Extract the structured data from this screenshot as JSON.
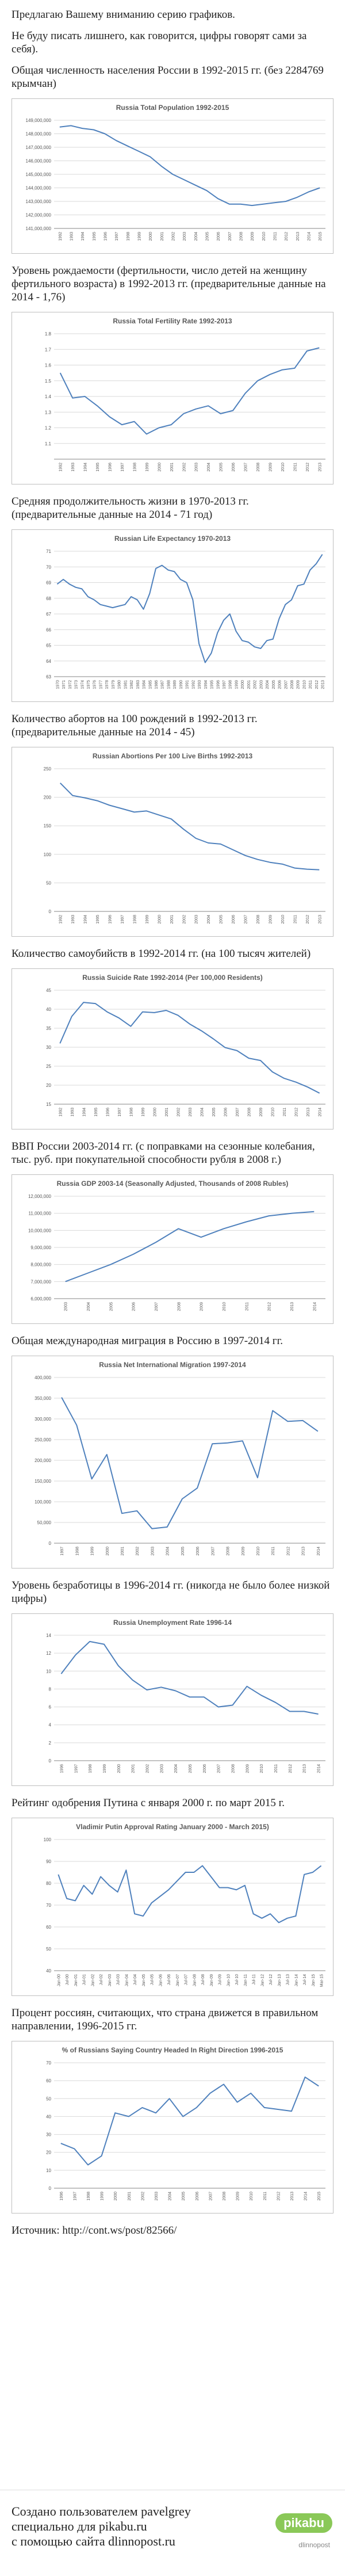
{
  "intro": [
    "Предлагаю Вашему вниманию серию графиков.",
    "Не буду писать лишнего, как говорится, цифры говорят сами за себя)."
  ],
  "sections": [
    {
      "caption": "Общая численность населения России в 1992-2015 гг. (без 2284769 крымчан)"
    },
    {
      "caption": "Уровень рождаемости (фертильности, число детей на женщину фертильного возраста) в 1992-2013 гг. (предварительные данные на 2014 - 1,76)"
    },
    {
      "caption": "Средняя продолжительность жизни в 1970-2013 гг. (предварительные данные на 2014 - 71 год)"
    },
    {
      "caption": "Количество абортов на 100 рождений в 1992-2013 гг. (предварительные данные на 2014 - 45)"
    },
    {
      "caption": "Количество самоубийств в 1992-2014 гг. (на 100 тысяч жителей)"
    },
    {
      "caption": "ВВП России 2003-2014 гг. (с поправками на сезонные колебания, тыс. руб. при покупательной способности рубля в 2008 г.)"
    },
    {
      "caption": "Общая международная миграция в Россию в 1997-2014 гг."
    },
    {
      "caption": "Уровень безработицы в 1996-2014 гг. (никогда не было более низкой цифры)"
    },
    {
      "caption": "Рейтинг одобрения Путина с января 2000 г. по март 2015 г."
    },
    {
      "caption": "Процент россиян, считающих, что страна движется в правильном направлении, 1996-2015 гг."
    }
  ],
  "chart_data": [
    {
      "type": "line",
      "title": "Russia Total Population 1992-2015",
      "color": "#4f81bd",
      "categories": [
        "1992",
        "1993",
        "1994",
        "1995",
        "1996",
        "1997",
        "1998",
        "1999",
        "2000",
        "2001",
        "2002",
        "2003",
        "2004",
        "2005",
        "2006",
        "2007",
        "2008",
        "2009",
        "2010",
        "2011",
        "2012",
        "2013",
        "2014",
        "2015"
      ],
      "values": [
        148500000,
        148600000,
        148400000,
        148300000,
        148000000,
        147500000,
        147100000,
        146700000,
        146300000,
        145600000,
        145000000,
        144600000,
        144200000,
        143800000,
        143200000,
        142800000,
        142800000,
        142700000,
        142800000,
        142900000,
        143000000,
        143300000,
        143700000,
        144000000
      ],
      "ylim": [
        141000000,
        149000000
      ],
      "yticks": [
        {
          "value": 141000000,
          "label": "141,000,000"
        },
        {
          "value": 142000000,
          "label": "142,000,000"
        },
        {
          "value": 143000000,
          "label": "143,000,000"
        },
        {
          "value": 144000000,
          "label": "144,000,000"
        },
        {
          "value": 145000000,
          "label": "145,000,000"
        },
        {
          "value": 146000000,
          "label": "146,000,000"
        },
        {
          "value": 147000000,
          "label": "147,000,000"
        },
        {
          "value": 148000000,
          "label": "148,000,000"
        },
        {
          "value": 149000000,
          "label": "149,000,000"
        }
      ],
      "grid": true
    },
    {
      "type": "line",
      "title": "Russia Total Fertility Rate 1992-2013",
      "color": "#4f81bd",
      "categories": [
        "1992",
        "1993",
        "1994",
        "1995",
        "1996",
        "1997",
        "1998",
        "1999",
        "2000",
        "2001",
        "2002",
        "2003",
        "2004",
        "2005",
        "2006",
        "2007",
        "2008",
        "2009",
        "2010",
        "2011",
        "2012",
        "2013"
      ],
      "values": [
        1.55,
        1.39,
        1.4,
        1.34,
        1.27,
        1.22,
        1.24,
        1.16,
        1.2,
        1.22,
        1.29,
        1.32,
        1.34,
        1.29,
        1.31,
        1.42,
        1.5,
        1.54,
        1.57,
        1.58,
        1.69,
        1.71
      ],
      "ylim": [
        1,
        1.8
      ],
      "yticks": [
        1.1,
        1.2,
        1.3,
        1.4,
        1.5,
        1.6,
        1.7,
        1.8
      ],
      "grid": true
    },
    {
      "type": "line",
      "title": "Russian Life Expectancy 1970-2013",
      "color": "#4f81bd",
      "categories": [
        "1970",
        "1971",
        "1972",
        "1973",
        "1974",
        "1975",
        "1976",
        "1977",
        "1978",
        "1979",
        "1980",
        "1981",
        "1982",
        "1983",
        "1984",
        "1985",
        "1986",
        "1987",
        "1988",
        "1989",
        "1990",
        "1991",
        "1992",
        "1993",
        "1994",
        "1995",
        "1996",
        "1997",
        "1998",
        "1999",
        "2000",
        "2001",
        "2002",
        "2003",
        "2004",
        "2005",
        "2006",
        "2007",
        "2008",
        "2009",
        "2010",
        "2011",
        "2012",
        "2013"
      ],
      "values": [
        68.9,
        69.2,
        68.9,
        68.7,
        68.6,
        68.1,
        67.9,
        67.6,
        67.5,
        67.4,
        67.5,
        67.6,
        68.1,
        67.9,
        67.3,
        68.3,
        69.9,
        70.1,
        69.8,
        69.7,
        69.2,
        69,
        67.9,
        65.1,
        63.9,
        64.5,
        65.8,
        66.6,
        67,
        65.9,
        65.3,
        65.2,
        64.9,
        64.8,
        65.3,
        65.4,
        66.7,
        67.6,
        67.9,
        68.8,
        68.9,
        69.8,
        70.2,
        70.8
      ],
      "ylim": [
        63,
        71
      ],
      "yticks": [
        63,
        64,
        65,
        66,
        67,
        68,
        69,
        70,
        71
      ],
      "grid": true
    },
    {
      "type": "line",
      "title": "Russian Abortions Per 100 Live Births 1992-2013",
      "color": "#4f81bd",
      "categories": [
        "1992",
        "1993",
        "1994",
        "1995",
        "1996",
        "1997",
        "1998",
        "1999",
        "2000",
        "2001",
        "2002",
        "2003",
        "2004",
        "2005",
        "2006",
        "2007",
        "2008",
        "2009",
        "2010",
        "2011",
        "2012",
        "2013"
      ],
      "values": [
        225,
        203,
        199,
        194,
        186,
        180,
        174,
        176,
        169,
        162,
        144,
        128,
        120,
        118,
        108,
        98,
        91,
        86,
        83,
        76,
        74,
        73
      ],
      "ylim": [
        0,
        250
      ],
      "yticks": [
        0,
        50,
        100,
        150,
        200,
        250
      ],
      "grid": true
    },
    {
      "type": "line",
      "title": "Russia Suicide Rate 1992-2014 (Per 100,000 Residents)",
      "color": "#4f81bd",
      "categories": [
        "1992",
        "1993",
        "1994",
        "1995",
        "1996",
        "1997",
        "1998",
        "1999",
        "2000",
        "2001",
        "2002",
        "2003",
        "2004",
        "2005",
        "2006",
        "2007",
        "2008",
        "2009",
        "2010",
        "2011",
        "2012",
        "2013",
        "2014"
      ],
      "values": [
        31,
        38.1,
        41.8,
        41.5,
        39.3,
        37.7,
        35.5,
        39.3,
        39.1,
        39.7,
        38.4,
        36.1,
        34.3,
        32.2,
        29.9,
        29.1,
        27.1,
        26.5,
        23.5,
        21.8,
        20.8,
        19.5,
        17.9
      ],
      "ylim": [
        15,
        45
      ],
      "yticks": [
        15,
        20,
        25,
        30,
        35,
        40,
        45
      ],
      "grid": true
    },
    {
      "type": "line",
      "title": "Russia GDP 2003-14 (Seasonally Adjusted, Thousands of 2008 Rubles)",
      "color": "#4f81bd",
      "categories": [
        "2003",
        "2004",
        "2005",
        "2006",
        "2007",
        "2008",
        "2009",
        "2010",
        "2011",
        "2012",
        "2013",
        "2014"
      ],
      "values": [
        7000000,
        7500000,
        8000000,
        8600000,
        9300000,
        10100000,
        9600000,
        10100000,
        10500000,
        10850000,
        11000000,
        11100000
      ],
      "ylim": [
        6000000,
        12000000
      ],
      "yticks": [
        {
          "value": 6000000,
          "label": "6,000,000"
        },
        {
          "value": 7000000,
          "label": "7,000,000"
        },
        {
          "value": 8000000,
          "label": "8,000,000"
        },
        {
          "value": 9000000,
          "label": "9,000,000"
        },
        {
          "value": 10000000,
          "label": "10,000,000"
        },
        {
          "value": 11000000,
          "label": "11,000,000"
        },
        {
          "value": 12000000,
          "label": "12,000,000"
        }
      ],
      "grid": true
    },
    {
      "type": "line",
      "title": "Russia Net International Migration 1997-2014",
      "color": "#4f81bd",
      "categories": [
        "1997",
        "1998",
        "1999",
        "2000",
        "2001",
        "2002",
        "2003",
        "2004",
        "2005",
        "2006",
        "2007",
        "2008",
        "2009",
        "2010",
        "2011",
        "2012",
        "2013",
        "2014"
      ],
      "values": [
        352000,
        285000,
        155000,
        214000,
        72000,
        78000,
        35000,
        39000,
        107000,
        133000,
        240000,
        242000,
        247000,
        158000,
        320000,
        294000,
        296000,
        270000
      ],
      "ylim": [
        0,
        400000
      ],
      "yticks": [
        0,
        {
          "value": 50000,
          "label": "50,000"
        },
        {
          "value": 100000,
          "label": "100,000"
        },
        {
          "value": 150000,
          "label": "150,000"
        },
        {
          "value": 200000,
          "label": "200,000"
        },
        {
          "value": 250000,
          "label": "250,000"
        },
        {
          "value": 300000,
          "label": "300,000"
        },
        {
          "value": 350000,
          "label": "350,000"
        },
        {
          "value": 400000,
          "label": "400,000"
        }
      ],
      "grid": true
    },
    {
      "type": "line",
      "title": "Russia Unemployment Rate 1996-14",
      "color": "#4f81bd",
      "categories": [
        "1996",
        "1997",
        "1998",
        "1999",
        "2000",
        "2001",
        "2002",
        "2003",
        "2004",
        "2005",
        "2006",
        "2007",
        "2008",
        "2009",
        "2010",
        "2011",
        "2012",
        "2013",
        "2014"
      ],
      "values": [
        9.7,
        11.8,
        13.3,
        13,
        10.6,
        9,
        7.9,
        8.2,
        7.8,
        7.1,
        7.1,
        6,
        6.2,
        8.3,
        7.3,
        6.5,
        5.5,
        5.5,
        5.2
      ],
      "ylim": [
        0,
        14
      ],
      "yticks": [
        0,
        2,
        4,
        6,
        8,
        10,
        12,
        14
      ],
      "grid": true
    },
    {
      "type": "line",
      "title": "Vladimir Putin Approval Rating January 2000 - March 2015)",
      "color": "#4f81bd",
      "categories": [
        "Jan-00",
        "Jul-00",
        "Jan-01",
        "Jul-01",
        "Jan-02",
        "Jul-02",
        "Jan-03",
        "Jul-03",
        "Jan-04",
        "Jul-04",
        "Jan-05",
        "Jul-05",
        "Jan-06",
        "Jul-06",
        "Jan-07",
        "Jul-07",
        "Jan-08",
        "Jul-08",
        "Jan-09",
        "Jul-09",
        "Jan-10",
        "Jul-10",
        "Jan-11",
        "Jul-11",
        "Jan-12",
        "Jul-12",
        "Jan-13",
        "Jul-13",
        "Jan-14",
        "Jul-14",
        "Jan-15",
        "Mar-15"
      ],
      "values": [
        84,
        73,
        72,
        79,
        75,
        83,
        79,
        76,
        86,
        66,
        65,
        71,
        74,
        77,
        81,
        85,
        85,
        88,
        83,
        78,
        78,
        77,
        79,
        66,
        64,
        66,
        62,
        64,
        65,
        84,
        85,
        88
      ],
      "ylim": [
        40,
        100
      ],
      "yticks": [
        40,
        50,
        60,
        70,
        80,
        90,
        100
      ],
      "grid": true
    },
    {
      "type": "line",
      "title": "% of Russians Saying Country Headed In Right Direction 1996-2015",
      "color": "#4f81bd",
      "categories": [
        "1996",
        "1997",
        "1998",
        "1999",
        "2000",
        "2001",
        "2002",
        "2003",
        "2004",
        "2005",
        "2006",
        "2007",
        "2008",
        "2009",
        "2010",
        "2011",
        "2012",
        "2013",
        "2014",
        "2015"
      ],
      "values": [
        25,
        22,
        13,
        18,
        42,
        40,
        45,
        42,
        50,
        40,
        45,
        53,
        58,
        48,
        53,
        45,
        44,
        43,
        62,
        57
      ],
      "ylim": [
        0,
        70
      ],
      "yticks": [
        0,
        10,
        20,
        30,
        40,
        50,
        60,
        70
      ],
      "grid": true
    }
  ],
  "source": "Источник: http://cont.ws/post/82566/",
  "footer": {
    "lines": [
      "Создано пользователем pavelgrey",
      "специально для pikabu.ru",
      "с помощью сайта dlinnopost.ru"
    ],
    "logo": "pikabu",
    "logo_note": "dlinnopost"
  }
}
